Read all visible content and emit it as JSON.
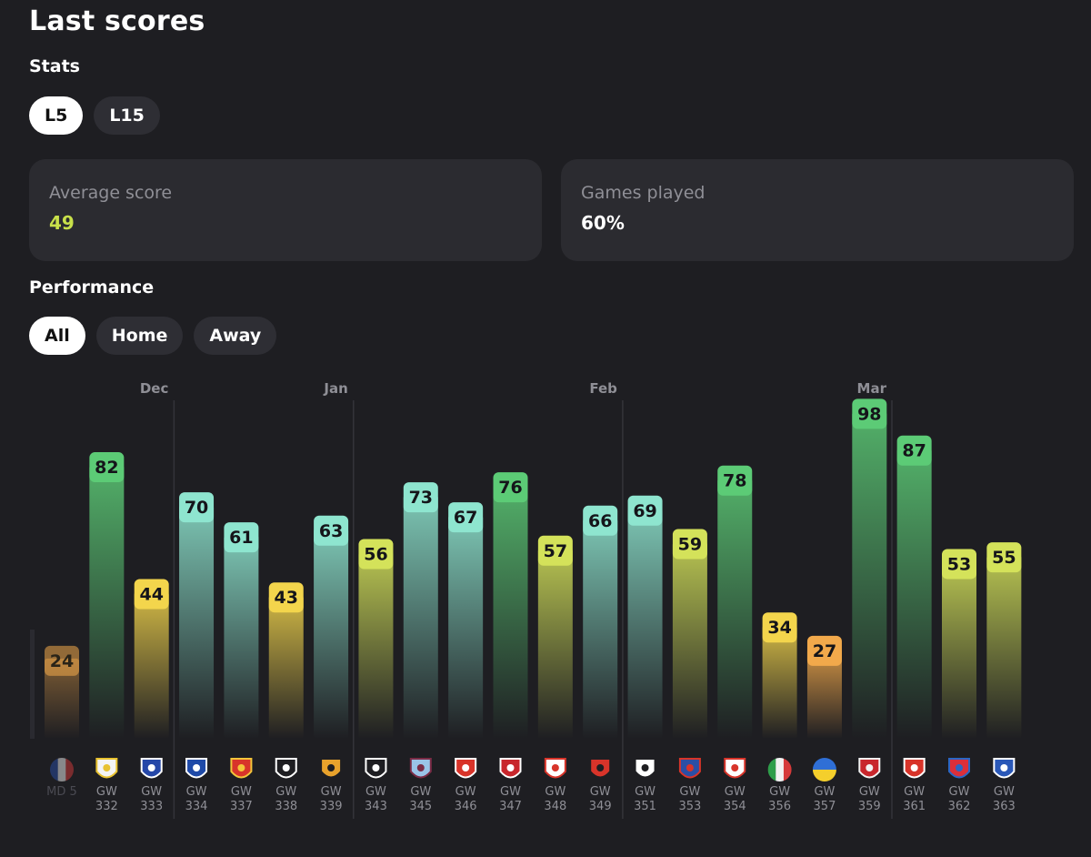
{
  "header": {
    "title": "Last scores"
  },
  "stats": {
    "heading": "Stats",
    "filters": [
      {
        "label": "L5",
        "active": true
      },
      {
        "label": "L15",
        "active": false
      }
    ],
    "cards": [
      {
        "label": "Average score",
        "value": "49",
        "value_color": "#c8e04a"
      },
      {
        "label": "Games played",
        "value": "60%",
        "value_color": "#ffffff"
      }
    ]
  },
  "performance": {
    "heading": "Performance",
    "filters": [
      {
        "label": "All",
        "active": true
      },
      {
        "label": "Home",
        "active": false
      },
      {
        "label": "Away",
        "active": false
      }
    ]
  },
  "colors": {
    "dark_green": "#5ccb76",
    "teal": "#8ee5cf",
    "yellow_green": "#d4e25a",
    "yellow": "#f3d54c",
    "orange": "#f2a94b",
    "average_accent": "#c8e04a"
  },
  "chart_data": {
    "type": "bar",
    "ylim": [
      0,
      100
    ],
    "month_labels": [
      {
        "label": "Dec",
        "before_index": 3
      },
      {
        "label": "Jan",
        "before_index": 7
      },
      {
        "label": "Feb",
        "before_index": 13
      },
      {
        "label": "Mar",
        "before_index": 19
      }
    ],
    "bars": [
      {
        "value": 24,
        "game_label": [
          "MD 5",
          ""
        ],
        "icon": "france-flag-icon",
        "color": "#f2a94b",
        "dim": true
      },
      {
        "value": 82,
        "game_label": [
          "GW",
          "332"
        ],
        "icon": "leeds-crest-icon",
        "color": "#5ccb76"
      },
      {
        "value": 44,
        "game_label": [
          "GW",
          "333"
        ],
        "icon": "everton-crest-icon",
        "color": "#f3d54c"
      },
      {
        "value": 70,
        "game_label": [
          "GW",
          "334"
        ],
        "icon": "chelsea-crest-icon",
        "color": "#8ee5cf"
      },
      {
        "value": 61,
        "game_label": [
          "GW",
          "337"
        ],
        "icon": "man-united-crest-icon",
        "color": "#8ee5cf"
      },
      {
        "value": 43,
        "game_label": [
          "GW",
          "338"
        ],
        "icon": "tottenham-crest-icon",
        "color": "#f3d54c"
      },
      {
        "value": 63,
        "game_label": [
          "GW",
          "339"
        ],
        "icon": "wolves-crest-icon",
        "color": "#8ee5cf"
      },
      {
        "value": 56,
        "game_label": [
          "GW",
          "343"
        ],
        "icon": "tottenham-crest-icon",
        "color": "#d4e25a"
      },
      {
        "value": 73,
        "game_label": [
          "GW",
          "345"
        ],
        "icon": "aston-villa-crest-icon",
        "color": "#8ee5cf"
      },
      {
        "value": 67,
        "game_label": [
          "GW",
          "346"
        ],
        "icon": "arsenal-crest-icon",
        "color": "#8ee5cf"
      },
      {
        "value": 76,
        "game_label": [
          "GW",
          "347"
        ],
        "icon": "nottingham-forest-crest-icon",
        "color": "#5ccb76"
      },
      {
        "value": 57,
        "game_label": [
          "GW",
          "348"
        ],
        "icon": "rb-leipzig-crest-icon",
        "color": "#d4e25a"
      },
      {
        "value": 66,
        "game_label": [
          "GW",
          "349"
        ],
        "icon": "bournemouth-crest-icon",
        "color": "#8ee5cf"
      },
      {
        "value": 69,
        "game_label": [
          "GW",
          "351"
        ],
        "icon": "newcastle-crest-icon",
        "color": "#8ee5cf"
      },
      {
        "value": 59,
        "game_label": [
          "GW",
          "353"
        ],
        "icon": "crystal-palace-crest-icon",
        "color": "#d4e25a"
      },
      {
        "value": 78,
        "game_label": [
          "GW",
          "354"
        ],
        "icon": "rb-leipzig-crest-icon",
        "color": "#5ccb76"
      },
      {
        "value": 34,
        "game_label": [
          "GW",
          "356"
        ],
        "icon": "italy-flag-icon",
        "color": "#f3d54c"
      },
      {
        "value": 27,
        "game_label": [
          "GW",
          "357"
        ],
        "icon": "ukraine-flag-icon",
        "color": "#f2a94b"
      },
      {
        "value": 98,
        "game_label": [
          "GW",
          "359"
        ],
        "icon": "liverpool-crest-icon",
        "color": "#5ccb76"
      },
      {
        "value": 87,
        "game_label": [
          "GW",
          "361"
        ],
        "icon": "southampton-crest-icon",
        "color": "#5ccb76"
      },
      {
        "value": 53,
        "game_label": [
          "GW",
          "362"
        ],
        "icon": "bayern-crest-icon",
        "color": "#d4e25a"
      },
      {
        "value": 55,
        "game_label": [
          "GW",
          "363"
        ],
        "icon": "leicester-crest-icon",
        "color": "#d4e25a"
      }
    ]
  }
}
